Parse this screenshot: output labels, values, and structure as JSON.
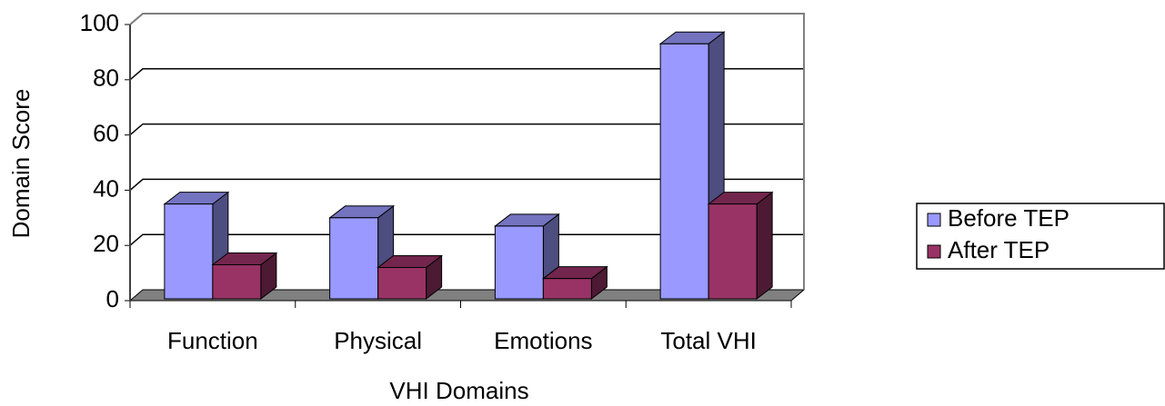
{
  "chart_data": {
    "type": "bar",
    "x_label": "VHI Domains",
    "y_label": "Domain Score",
    "categories": [
      "Function",
      "Physical",
      "Emotions",
      "Total VHI"
    ],
    "series": [
      {
        "name": "Before TEP",
        "color": "#9999ff",
        "values": [
          35,
          30,
          27,
          93
        ]
      },
      {
        "name": "After TEP",
        "color": "#993366",
        "values": [
          13,
          12,
          8,
          35
        ]
      }
    ],
    "ylim": [
      0,
      100
    ],
    "yticks": [
      0,
      20,
      40,
      60,
      80,
      100
    ],
    "grid": true,
    "legend": "right"
  }
}
